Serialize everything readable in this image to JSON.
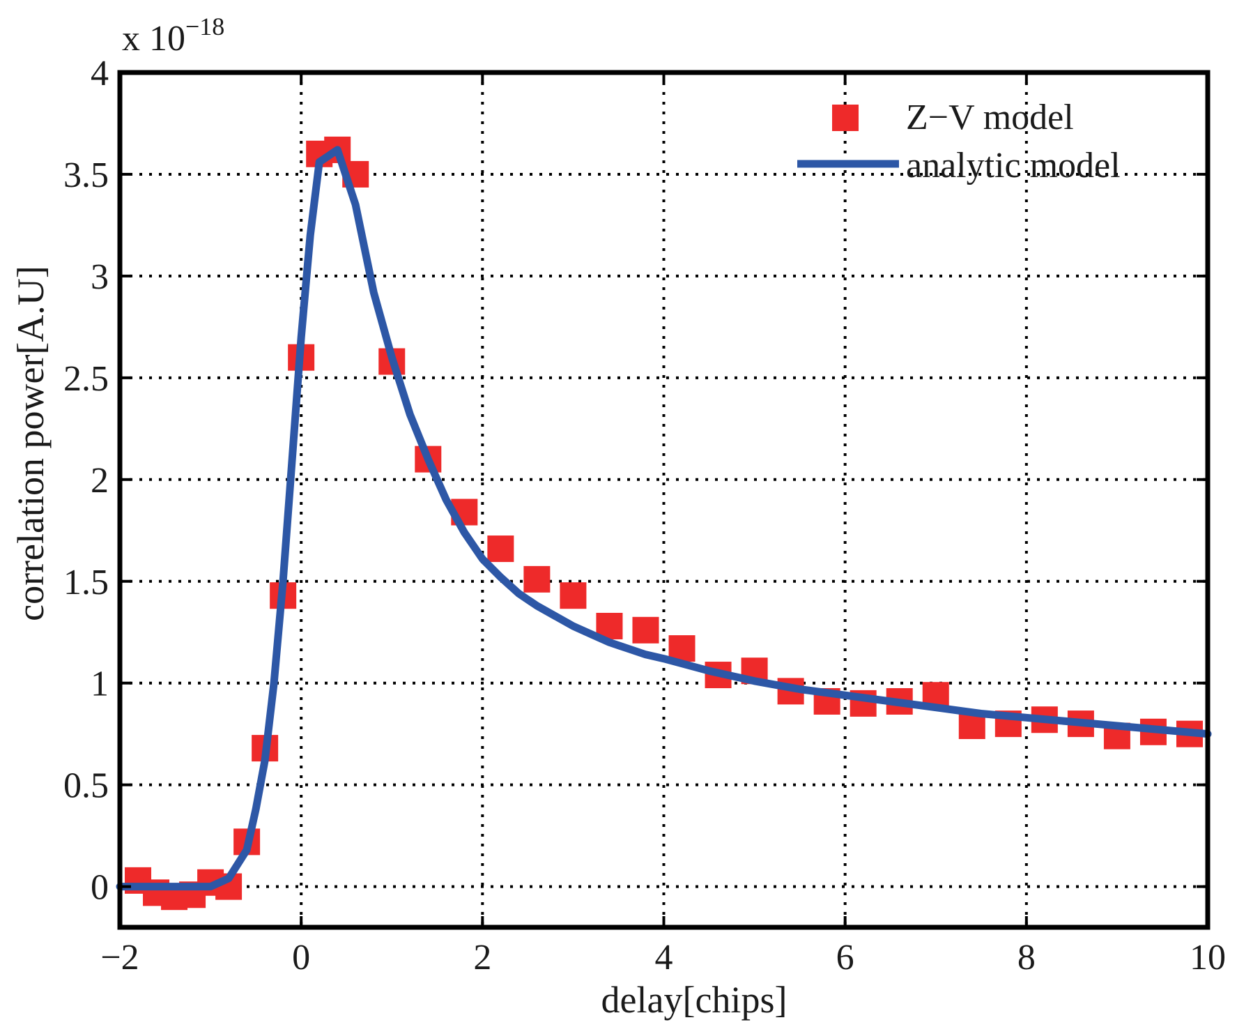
{
  "chart_data": {
    "type": "scatter+line",
    "title": "",
    "xlabel": "delay[chips]",
    "ylabel": "correlation power[A.U]",
    "y_multiplier_label": "x 10",
    "y_multiplier_exponent": "−18",
    "xlim": [
      -2,
      10
    ],
    "ylim": [
      -0.2,
      4
    ],
    "xticks": [
      -2,
      0,
      2,
      4,
      6,
      8,
      10
    ],
    "xtick_labels": [
      "−2",
      "0",
      "2",
      "4",
      "6",
      "8",
      "10"
    ],
    "yticks": [
      0,
      0.5,
      1,
      1.5,
      2,
      2.5,
      3,
      3.5,
      4
    ],
    "ytick_labels": [
      "0",
      "0.5",
      "1",
      "1.5",
      "2",
      "2.5",
      "3",
      "3.5",
      "4"
    ],
    "grid": true,
    "legend_position": "top-right",
    "series": [
      {
        "name": "Z−V model",
        "kind": "markers",
        "marker": "square",
        "color": "#ee2a2a",
        "x": [
          -1.8,
          -1.6,
          -1.4,
          -1.2,
          -1.0,
          -0.8,
          -0.6,
          -0.4,
          -0.2,
          0.0,
          0.2,
          0.4,
          0.6,
          1.0,
          1.4,
          1.8,
          2.2,
          2.6,
          3.0,
          3.4,
          3.8,
          4.2,
          4.6,
          5.0,
          5.4,
          5.8,
          6.2,
          6.6,
          7.0,
          7.4,
          7.8,
          8.2,
          8.6,
          9.0,
          9.4,
          9.8
        ],
        "y": [
          0.03,
          -0.03,
          -0.05,
          -0.04,
          0.02,
          0.0,
          0.22,
          0.68,
          1.43,
          2.6,
          3.6,
          3.62,
          3.5,
          2.58,
          2.1,
          1.84,
          1.66,
          1.51,
          1.43,
          1.28,
          1.26,
          1.17,
          1.04,
          1.06,
          0.96,
          0.91,
          0.9,
          0.91,
          0.94,
          0.79,
          0.8,
          0.82,
          0.8,
          0.74,
          0.76,
          0.75
        ]
      },
      {
        "name": "analytic model",
        "kind": "line",
        "color": "#2d57a6",
        "x": [
          -2.0,
          -1.5,
          -1.0,
          -0.8,
          -0.6,
          -0.5,
          -0.4,
          -0.3,
          -0.2,
          -0.1,
          0.0,
          0.1,
          0.2,
          0.4,
          0.6,
          0.8,
          1.0,
          1.2,
          1.4,
          1.6,
          1.8,
          2.0,
          2.2,
          2.4,
          2.6,
          2.8,
          3.0,
          3.2,
          3.4,
          3.6,
          3.8,
          4.0,
          4.5,
          5.0,
          5.5,
          6.0,
          6.5,
          7.0,
          7.5,
          8.0,
          8.5,
          9.0,
          9.5,
          10.0
        ],
        "y": [
          0.0,
          0.0,
          0.0,
          0.04,
          0.18,
          0.38,
          0.62,
          1.0,
          1.5,
          2.1,
          2.7,
          3.2,
          3.56,
          3.62,
          3.35,
          2.92,
          2.6,
          2.32,
          2.1,
          1.9,
          1.74,
          1.61,
          1.52,
          1.44,
          1.38,
          1.33,
          1.28,
          1.24,
          1.2,
          1.17,
          1.14,
          1.12,
          1.06,
          1.01,
          0.97,
          0.94,
          0.91,
          0.88,
          0.85,
          0.83,
          0.81,
          0.79,
          0.77,
          0.75
        ]
      }
    ]
  }
}
